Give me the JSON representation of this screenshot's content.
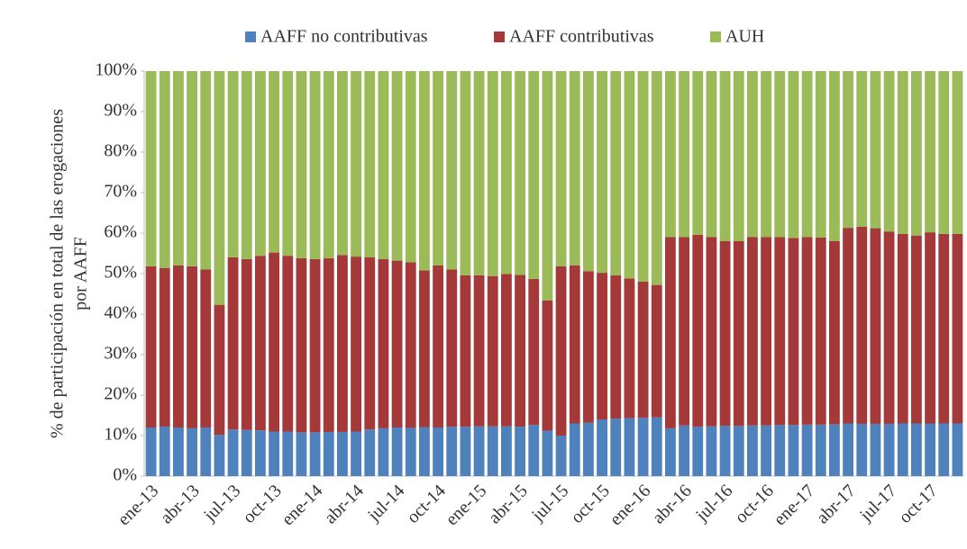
{
  "chart_data": {
    "type": "stacked_bar",
    "ylabel": [
      "% de participación en total de las erogaciones",
      "por AAFF"
    ],
    "categories": [
      "ene-13",
      null,
      null,
      "abr-13",
      null,
      null,
      "jul-13",
      null,
      null,
      "oct-13",
      null,
      null,
      "ene-14",
      null,
      null,
      "abr-14",
      null,
      null,
      "jul-14",
      null,
      null,
      "oct-14",
      null,
      null,
      "ene-15",
      null,
      null,
      "abr-15",
      null,
      null,
      "jul-15",
      null,
      null,
      "oct-15",
      null,
      null,
      "ene-16",
      null,
      null,
      "abr-16",
      null,
      null,
      "jul-16",
      null,
      null,
      "oct-16",
      null,
      null,
      "ene-17",
      null,
      null,
      "abr-17",
      null,
      null,
      "jul-17",
      null,
      null,
      "oct-17",
      null,
      null
    ],
    "series": [
      {
        "name": "AAFF no contributivas",
        "color": "#4f81bd",
        "values": [
          12,
          12.2,
          12,
          11.8,
          12,
          10.2,
          11.5,
          11.4,
          11.3,
          11,
          11,
          10.8,
          10.8,
          10.9,
          10.9,
          11,
          11.5,
          11.8,
          12,
          11.9,
          12.1,
          12,
          12.2,
          12.2,
          12.3,
          12.3,
          12.3,
          12.2,
          12.6,
          11.2,
          10,
          13,
          13.2,
          14,
          14.2,
          14.3,
          14.4,
          14.5,
          11.8,
          12.5,
          12.2,
          12.3,
          12.4,
          12.4,
          12.5,
          12.5,
          12.6,
          12.6,
          12.7,
          12.7,
          12.8,
          13,
          12.9,
          12.9,
          12.9,
          13,
          13,
          13,
          13,
          13
        ]
      },
      {
        "name": "AAFF contributivas",
        "color": "#a5393a",
        "values": [
          39.8,
          39.2,
          40,
          40,
          39,
          32.1,
          42.5,
          42.2,
          43.1,
          44.2,
          43.4,
          43,
          42.8,
          42.9,
          43.7,
          43.2,
          42.5,
          41.8,
          41.2,
          40.9,
          38.7,
          40,
          38.8,
          37.4,
          37.3,
          37.1,
          37.6,
          37.5,
          36.1,
          32.2,
          41.8,
          39,
          37.4,
          36.2,
          35.4,
          34.5,
          33.6,
          32.7,
          47.2,
          46.5,
          47.4,
          46.7,
          45.6,
          45.6,
          46.5,
          46.5,
          46.4,
          46.2,
          46.3,
          46.2,
          45.2,
          48.3,
          48.7,
          48.3,
          47.5,
          46.8,
          46.4,
          47.2,
          46.8,
          46.8
        ]
      },
      {
        "name": "AUH",
        "color": "#9bbb59",
        "values": [
          48.2,
          48.6,
          48,
          48.2,
          49,
          57.7,
          46,
          46.4,
          45.6,
          44.8,
          45.6,
          46.2,
          46.4,
          46.2,
          45.4,
          45.8,
          46,
          46.4,
          46.8,
          47.2,
          49.2,
          48,
          49,
          50.4,
          50.4,
          50.6,
          50.1,
          50.3,
          51.3,
          56.6,
          48.2,
          48,
          49.4,
          49.8,
          50.4,
          51.2,
          52,
          52.8,
          41,
          41,
          40.4,
          41,
          42,
          42,
          41,
          41,
          41,
          41.2,
          41,
          41.1,
          42,
          38.7,
          38.4,
          38.8,
          39.6,
          40.2,
          40.6,
          39.8,
          40.2,
          40.2
        ]
      }
    ],
    "ylim": [
      0,
      100
    ],
    "yticks": [
      {
        "value": 0,
        "label": "0%"
      },
      {
        "value": 10,
        "label": "10%"
      },
      {
        "value": 20,
        "label": "20%"
      },
      {
        "value": 30,
        "label": "30%"
      },
      {
        "value": 40,
        "label": "40%"
      },
      {
        "value": 50,
        "label": "50%"
      },
      {
        "value": 60,
        "label": "60%"
      },
      {
        "value": 70,
        "label": "70%"
      },
      {
        "value": 80,
        "label": "80%"
      },
      {
        "value": 90,
        "label": "90%"
      },
      {
        "value": 100,
        "label": "100%"
      }
    ],
    "grid": false
  }
}
